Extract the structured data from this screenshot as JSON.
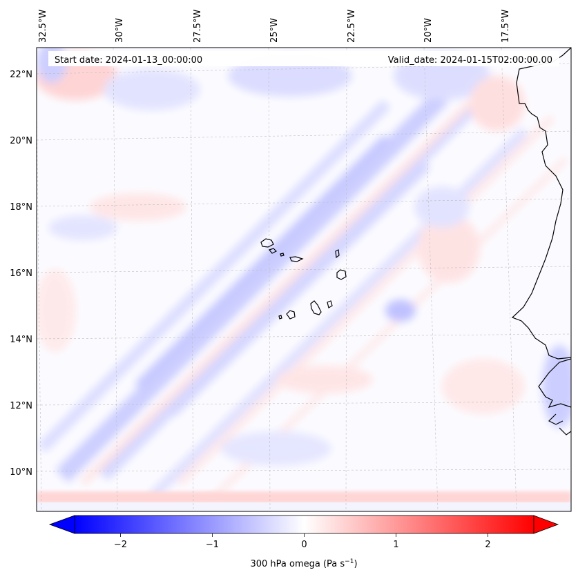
{
  "header": {
    "start_date": "Start date: 2024-01-13_00:00:00",
    "valid_date": "Valid_date: 2024-01-15T02:00:00.00"
  },
  "axes": {
    "lon_labels": [
      "32.5°W",
      "30°W",
      "27.5°W",
      "25°W",
      "22.5°W",
      "20°W",
      "17.5°W"
    ],
    "lat_labels": [
      "22°N",
      "20°N",
      "18°N",
      "16°N",
      "14°N",
      "12°N",
      "10°N"
    ]
  },
  "colorbar": {
    "ticks": [
      "−2",
      "−1",
      "0",
      "1",
      "2"
    ],
    "tick_values": [
      -2,
      -1,
      0,
      1,
      2
    ],
    "range": [
      -2.5,
      2.5
    ],
    "label_main": "300 hPa omega (Pa s",
    "label_sup": "−1",
    "label_end": ")",
    "colors": {
      "low": "#0000ff",
      "mid": "#ffffff",
      "high": "#ff0000"
    }
  },
  "field": {
    "variable": "300 hPa omega",
    "units": "Pa s-1"
  }
}
